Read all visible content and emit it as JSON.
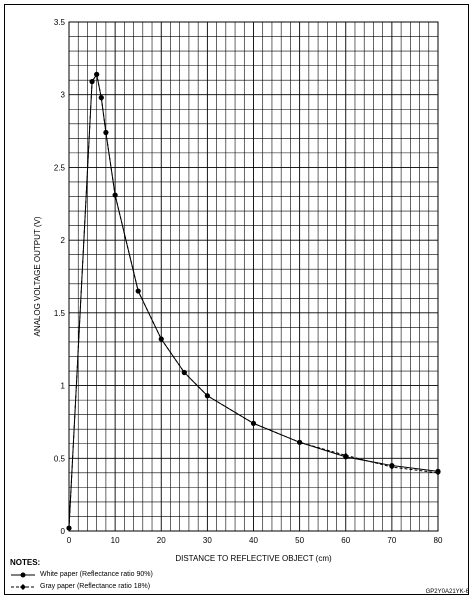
{
  "chart_data": {
    "type": "line",
    "title": "",
    "xlabel": "DISTANCE TO REFLECTIVE OBJECT (cm)",
    "ylabel": "ANALOG VOLTAGE OUTPUT (V)",
    "xlim": [
      0,
      80
    ],
    "ylim": [
      0,
      3.5
    ],
    "x_ticks": [
      0,
      10,
      20,
      30,
      40,
      50,
      60,
      70,
      80
    ],
    "y_ticks": [
      0,
      0.5,
      1,
      1.5,
      2,
      2.5,
      3,
      3.5
    ],
    "x_tick_labels": [
      "0",
      "10",
      "20",
      "30",
      "40",
      "50",
      "60",
      "70",
      "80"
    ],
    "y_tick_labels": [
      "0",
      "0.5",
      "1",
      "1.5",
      "2",
      "2.5",
      "3",
      "3.5"
    ],
    "grid": true,
    "grid_minor_x_step": 2,
    "grid_minor_y_step": 0.1,
    "series": [
      {
        "name": "White paper (Reflectance ratio 90%)",
        "marker": "circle",
        "line_style": "solid",
        "x": [
          0,
          5,
          6,
          7,
          8,
          10,
          15,
          20,
          25,
          30,
          40,
          50,
          60,
          70,
          80
        ],
        "y": [
          0.02,
          3.09,
          3.14,
          2.98,
          2.74,
          2.31,
          1.65,
          1.32,
          1.09,
          0.93,
          0.74,
          0.61,
          0.51,
          0.45,
          0.41
        ]
      },
      {
        "name": "Gray paper (Reflectance ratio 18%)",
        "marker": "diamond",
        "line_style": "dashed",
        "x": [
          0,
          5,
          6,
          7,
          8,
          10,
          15,
          20,
          25,
          30,
          40,
          50,
          60,
          70,
          80
        ],
        "y": [
          0.02,
          3.09,
          3.14,
          2.98,
          2.74,
          2.31,
          1.65,
          1.32,
          1.09,
          0.93,
          0.74,
          0.61,
          0.52,
          0.44,
          0.4
        ]
      }
    ]
  },
  "notes": {
    "title": "NOTES:",
    "white_label": "White paper (Reflectance ratio 90%)",
    "gray_label": "Gray paper (Reflectance ratio 18%)"
  },
  "figure_code": "GP2Y0A21YK-6"
}
